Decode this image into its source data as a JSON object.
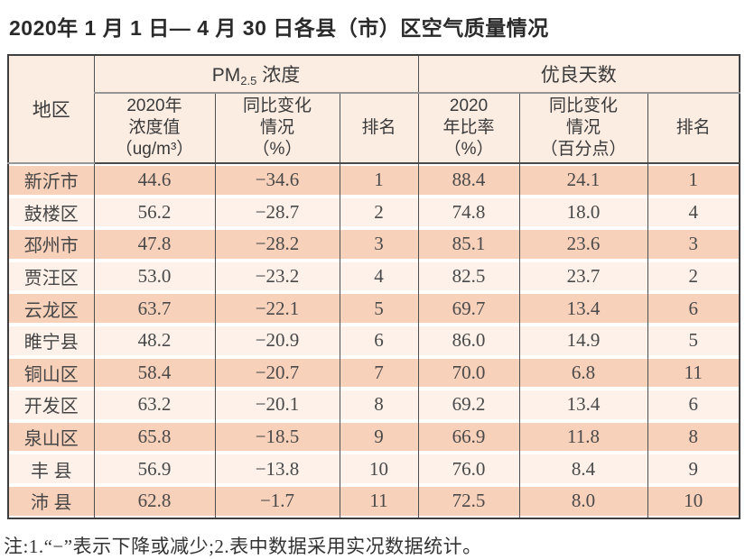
{
  "title": "2020年 1 月 1 日— 4 月 30 日各县（市）区空气质量情况",
  "colors": {
    "header_bg": "#fcede3",
    "row_odd_bg": "#f8d1bb",
    "row_even_bg": "#fdf1e9",
    "border_dark": "#3f3f3f",
    "border_gray": "#969696",
    "text": "#3d3d3d"
  },
  "table": {
    "region_header": "地区",
    "pm_group": {
      "prefix": "PM",
      "subscript": "2.5",
      "suffix": " 浓度"
    },
    "good_group": "优良天数",
    "sub_headers": [
      "2020年\n浓度值\n（ug/m³）",
      "同比变化\n情况\n（%）",
      "排名",
      "2020\n年比率\n（%）",
      "同比变化\n情况\n（百分点）",
      "排名"
    ],
    "rows": [
      {
        "region": "新沂市",
        "pm_value": "44.6",
        "pm_change": "−34.6",
        "pm_rank": "1",
        "good_ratio": "88.4",
        "good_change": "24.1",
        "good_rank": "1"
      },
      {
        "region": "鼓楼区",
        "pm_value": "56.2",
        "pm_change": "−28.7",
        "pm_rank": "2",
        "good_ratio": "74.8",
        "good_change": "18.0",
        "good_rank": "4"
      },
      {
        "region": "邳州市",
        "pm_value": "47.8",
        "pm_change": "−28.2",
        "pm_rank": "3",
        "good_ratio": "85.1",
        "good_change": "23.6",
        "good_rank": "3"
      },
      {
        "region": "贾汪区",
        "pm_value": "53.0",
        "pm_change": "−23.2",
        "pm_rank": "4",
        "good_ratio": "82.5",
        "good_change": "23.7",
        "good_rank": "2"
      },
      {
        "region": "云龙区",
        "pm_value": "63.7",
        "pm_change": "−22.1",
        "pm_rank": "5",
        "good_ratio": "69.7",
        "good_change": "13.4",
        "good_rank": "6"
      },
      {
        "region": "睢宁县",
        "pm_value": "48.2",
        "pm_change": "−20.9",
        "pm_rank": "6",
        "good_ratio": "86.0",
        "good_change": "14.9",
        "good_rank": "5"
      },
      {
        "region": "铜山区",
        "pm_value": "58.4",
        "pm_change": "−20.7",
        "pm_rank": "7",
        "good_ratio": "70.0",
        "good_change": "6.8",
        "good_rank": "11"
      },
      {
        "region": "开发区",
        "pm_value": "63.2",
        "pm_change": "−20.1",
        "pm_rank": "8",
        "good_ratio": "69.2",
        "good_change": "13.4",
        "good_rank": "6"
      },
      {
        "region": "泉山区",
        "pm_value": "65.8",
        "pm_change": "−18.5",
        "pm_rank": "9",
        "good_ratio": "66.9",
        "good_change": "11.8",
        "good_rank": "8"
      },
      {
        "region": "丰 县",
        "pm_value": "56.9",
        "pm_change": "−13.8",
        "pm_rank": "10",
        "good_ratio": "76.0",
        "good_change": "8.4",
        "good_rank": "9"
      },
      {
        "region": "沛 县",
        "pm_value": "62.8",
        "pm_change": "−1.7",
        "pm_rank": "11",
        "good_ratio": "72.5",
        "good_change": "8.0",
        "good_rank": "10"
      }
    ]
  },
  "footnote": "注:1.“−”表示下降或减少;2.表中数据采用实况数据统计。"
}
